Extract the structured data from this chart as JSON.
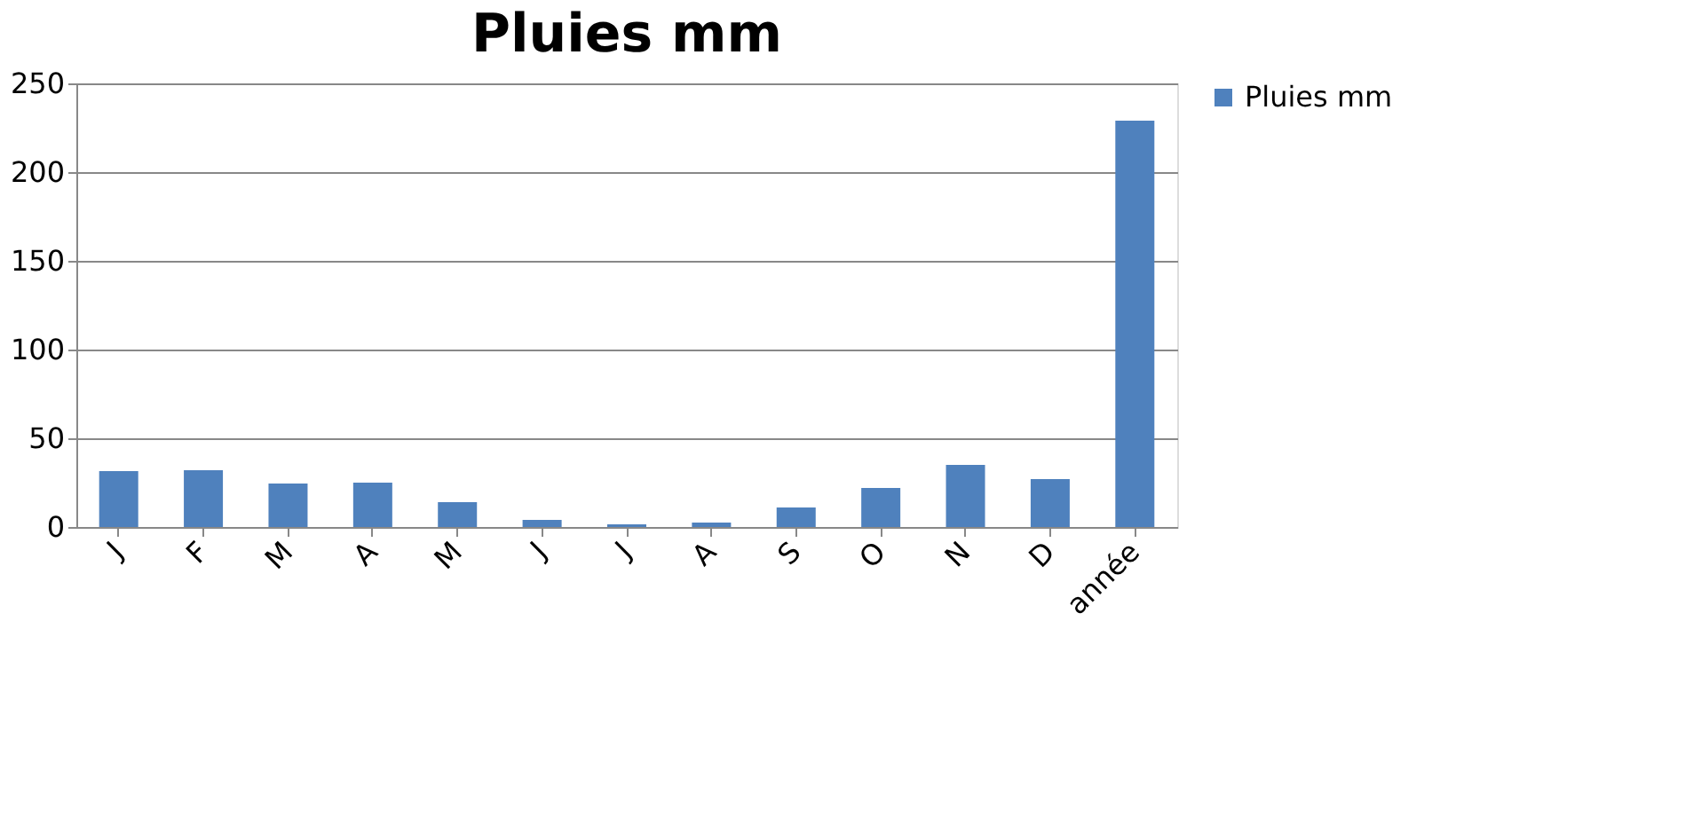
{
  "chart_data": {
    "type": "bar",
    "title": "Pluies mm",
    "categories": [
      "J",
      "F",
      "M",
      "A",
      "M",
      "J",
      "J",
      "A",
      "S",
      "O",
      "N",
      "D",
      "année"
    ],
    "series": [
      {
        "name": "Pluies mm",
        "color": "#4f81bd",
        "values": [
          31.5,
          32,
          24.5,
          25,
          14,
          4,
          1.5,
          2.5,
          11,
          22,
          35,
          27,
          229
        ]
      }
    ],
    "ylim": [
      0,
      250
    ],
    "yticks": [
      0,
      50,
      100,
      150,
      200,
      250
    ],
    "grid": "y",
    "legend": "right"
  }
}
